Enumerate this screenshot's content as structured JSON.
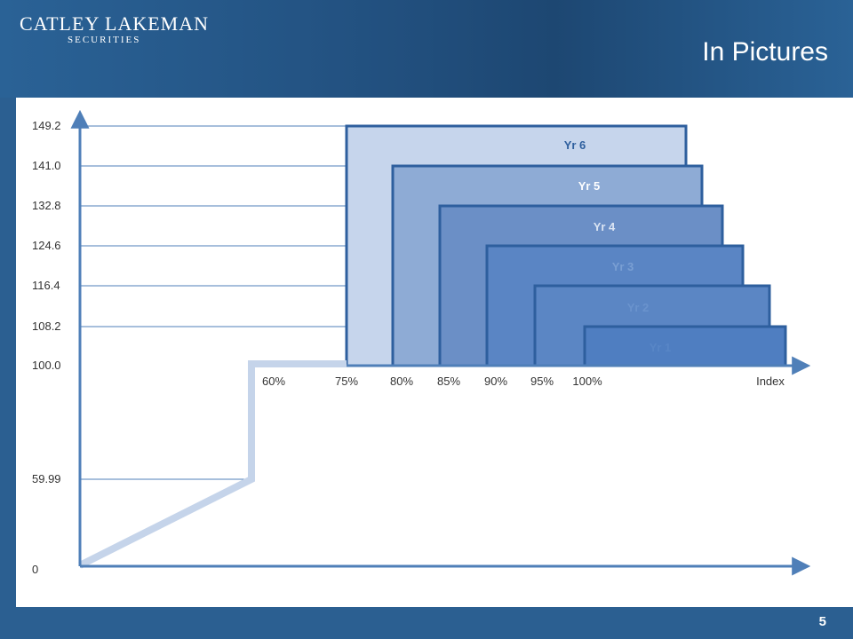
{
  "header": {
    "brand_name": "CATLEY LAKEMAN",
    "brand_sub": "SECURITIES",
    "title": "In Pictures"
  },
  "footer": {
    "page_number": "5"
  },
  "colors": {
    "axis": "#4f7fb8",
    "path": "#c5d4ea",
    "box_stroke": "#2e5f9e",
    "yr6": "#c6d5ec",
    "yr5": "#8eabd5",
    "yr4": "#6b8fc6",
    "yr3": "#5a85c4",
    "yr2": "#5b86c4",
    "yr1": "#4f7ec1"
  },
  "chart_data": {
    "type": "diagram",
    "y_ticks": [
      "149.2",
      "141.0",
      "132.8",
      "124.6",
      "116.4",
      "108.2",
      "100.0",
      "59.99",
      "0"
    ],
    "x_ticks": [
      "60%",
      "75%",
      "80%",
      "85%",
      "90%",
      "95%",
      "100%"
    ],
    "x_axis_label": "Index",
    "boxes": [
      {
        "label": "Yr 6",
        "barrier": "75%",
        "level": "149.2"
      },
      {
        "label": "Yr 5",
        "barrier": "80%",
        "level": "141.0"
      },
      {
        "label": "Yr 4",
        "barrier": "85%",
        "level": "132.8"
      },
      {
        "label": "Yr 3",
        "barrier": "90%",
        "level": "124.6"
      },
      {
        "label": "Yr 2",
        "barrier": "95%",
        "level": "116.4"
      },
      {
        "label": "Yr 1",
        "barrier": "100%",
        "level": "108.2"
      }
    ]
  }
}
